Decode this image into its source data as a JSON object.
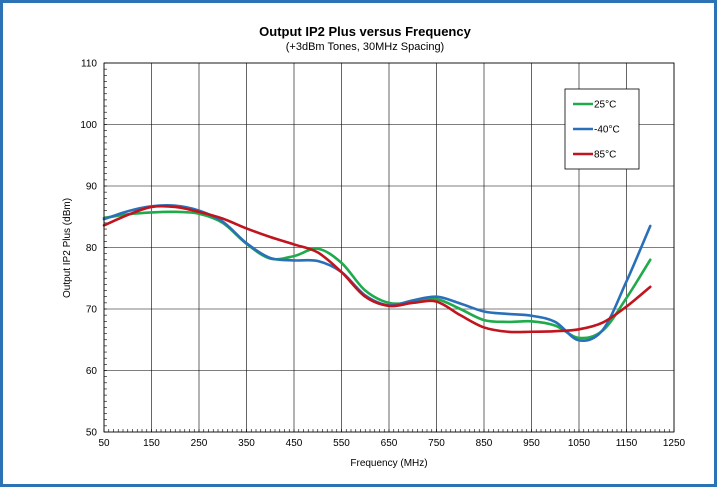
{
  "chart_data": {
    "type": "line",
    "title": "Output IP2 Plus versus Frequency",
    "subtitle": "(+3dBm Tones, 30MHz Spacing)",
    "xlabel": "Frequency (MHz)",
    "ylabel": "Output IP2 Plus (dBm)",
    "xlim": [
      50,
      1250
    ],
    "ylim": [
      50,
      110
    ],
    "xticks": [
      50,
      150,
      250,
      350,
      450,
      550,
      650,
      750,
      850,
      950,
      1050,
      1150,
      1250
    ],
    "yticks": [
      50,
      60,
      70,
      80,
      90,
      100,
      110
    ],
    "grid": true,
    "legend_position": "top-right",
    "x": [
      50,
      100,
      150,
      200,
      250,
      300,
      350,
      400,
      450,
      500,
      550,
      600,
      650,
      700,
      750,
      800,
      850,
      900,
      950,
      1000,
      1050,
      1100,
      1150,
      1200
    ],
    "series": [
      {
        "name": "25°C",
        "color": "#1faa4b",
        "values": [
          84.8,
          85.4,
          85.7,
          85.8,
          85.5,
          84.0,
          80.6,
          78.2,
          78.6,
          79.8,
          77.5,
          73.0,
          71.0,
          71.1,
          71.6,
          70.0,
          68.2,
          67.9,
          68.0,
          67.3,
          65.3,
          66.5,
          71.8,
          78.0
        ]
      },
      {
        "name": "-40°C",
        "color": "#2a70b8",
        "values": [
          84.6,
          85.9,
          86.7,
          86.8,
          86.0,
          84.2,
          80.7,
          78.3,
          77.9,
          77.8,
          76.0,
          72.2,
          70.6,
          71.4,
          72.0,
          70.9,
          69.6,
          69.2,
          68.9,
          67.9,
          64.9,
          66.6,
          74.5,
          83.5
        ]
      },
      {
        "name": "85°C",
        "color": "#c0141e",
        "values": [
          83.6,
          85.3,
          86.6,
          86.6,
          85.8,
          84.7,
          83.1,
          81.7,
          80.5,
          79.2,
          76.0,
          72.0,
          70.5,
          71.0,
          71.2,
          69.0,
          67.0,
          66.3,
          66.3,
          66.4,
          66.7,
          67.8,
          70.4,
          73.6
        ]
      }
    ]
  }
}
